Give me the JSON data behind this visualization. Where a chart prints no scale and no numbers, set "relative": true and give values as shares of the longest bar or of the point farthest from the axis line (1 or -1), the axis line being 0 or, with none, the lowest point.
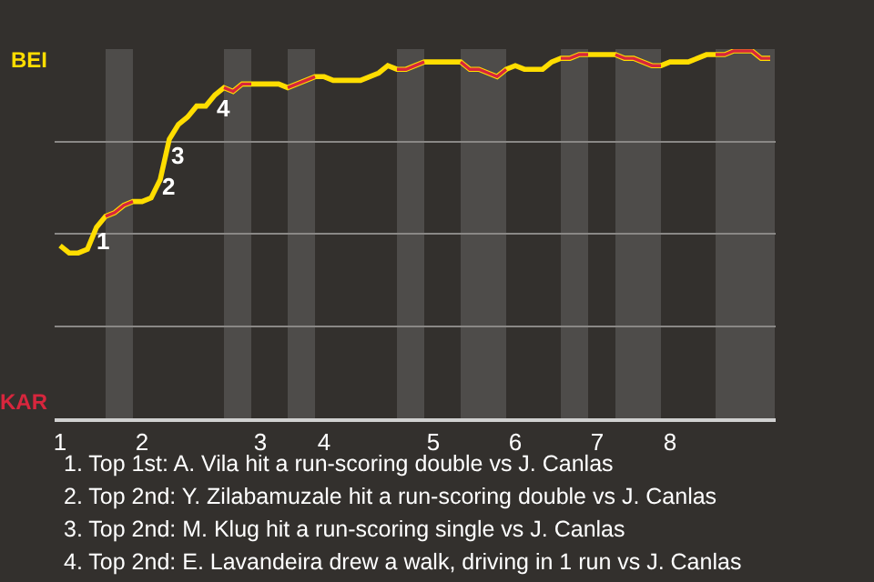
{
  "chart_data": {
    "type": "line",
    "relative": true,
    "categories": [
      "1",
      null,
      null,
      null,
      null,
      null,
      null,
      null,
      null,
      "2",
      null,
      null,
      null,
      null,
      null,
      null,
      null,
      null,
      null,
      null,
      null,
      null,
      "3",
      null,
      null,
      null,
      null,
      null,
      null,
      "4",
      null,
      null,
      null,
      null,
      null,
      null,
      null,
      null,
      null,
      null,
      null,
      "5",
      null,
      null,
      null,
      null,
      null,
      null,
      null,
      null,
      "6",
      null,
      null,
      null,
      null,
      null,
      null,
      null,
      null,
      "7",
      null,
      null,
      null,
      null,
      null,
      null,
      null,
      "8",
      null,
      null,
      null,
      null,
      null,
      null,
      null,
      null,
      null,
      null,
      null
    ],
    "series": [
      {
        "color": "#ffdd00",
        "values": [
          0.47,
          0.45,
          0.45,
          0.46,
          0.52,
          0.55,
          0.56,
          0.58,
          0.59,
          0.59,
          0.6,
          0.65,
          0.76,
          0.8,
          0.82,
          0.85,
          0.85,
          0.88,
          0.9,
          0.89,
          0.91,
          0.91,
          0.91,
          0.91,
          0.91,
          0.9,
          0.91,
          0.92,
          0.93,
          0.93,
          0.92,
          0.92,
          0.92,
          0.92,
          0.93,
          0.94,
          0.96,
          0.95,
          0.95,
          0.96,
          0.97,
          0.97,
          0.97,
          0.97,
          0.97,
          0.95,
          0.95,
          0.94,
          0.93,
          0.95,
          0.96,
          0.95,
          0.95,
          0.95,
          0.97,
          0.98,
          0.98,
          0.99,
          0.99,
          0.99,
          0.99,
          0.99,
          0.98,
          0.98,
          0.97,
          0.96,
          0.96,
          0.97,
          0.97,
          0.97,
          0.98,
          0.99,
          0.99,
          0.99,
          1.0,
          1.0,
          1.0,
          0.98,
          0.98
        ]
      },
      {
        "color": "#d7263d",
        "values": [
          null,
          null,
          null,
          null,
          null,
          0.55,
          0.56,
          0.58,
          0.59,
          null,
          null,
          null,
          null,
          null,
          null,
          null,
          null,
          null,
          0.9,
          0.89,
          0.91,
          0.91,
          null,
          null,
          null,
          0.9,
          0.91,
          0.92,
          0.93,
          null,
          null,
          null,
          null,
          null,
          null,
          null,
          null,
          0.95,
          0.95,
          0.96,
          0.97,
          null,
          null,
          null,
          0.97,
          0.95,
          0.95,
          0.94,
          0.93,
          0.95,
          null,
          null,
          null,
          null,
          null,
          0.98,
          0.98,
          0.99,
          0.99,
          null,
          null,
          0.99,
          0.98,
          0.98,
          0.97,
          0.96,
          0.96,
          null,
          null,
          null,
          null,
          null,
          0.99,
          0.99,
          1.0,
          1.0,
          1.0,
          0.98,
          0.98
        ]
      }
    ],
    "grid": "y",
    "marker": "none",
    "line_style": "solid",
    "annotations": [
      "BEI",
      "KAR",
      "1",
      "2",
      "3",
      "4",
      "1. Top 1st: A. Vila hit a run-scoring double vs J. Canlas",
      "2. Top 2nd: Y. Zilabamuzale hit a run-scoring double vs J. Canlas",
      "3. Top 2nd: M. Klug hit a run-scoring single vs J. Canlas",
      "4. Top 2nd: E. Lavandeira drew a walk, driving in 1 run vs J. Canlas"
    ]
  }
}
